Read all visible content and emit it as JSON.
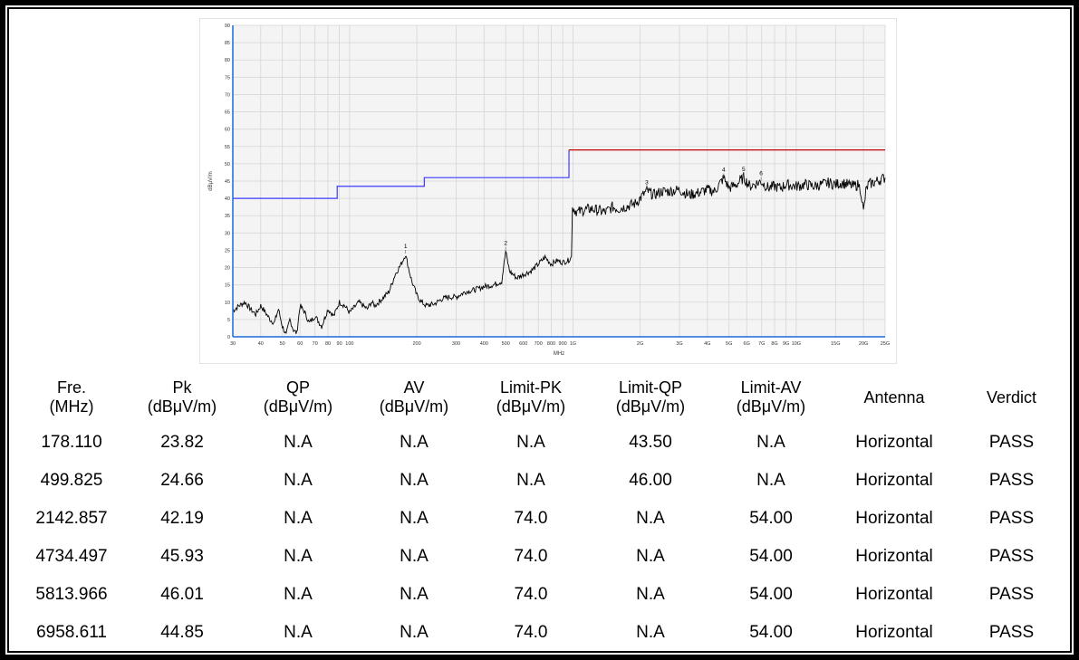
{
  "chart_data": {
    "type": "line",
    "xlabel": "MHz",
    "ylabel": "dBμV/m",
    "x_scale": "log",
    "xlim": [
      30,
      25000
    ],
    "ylim": [
      0,
      90
    ],
    "y_ticks": [
      0,
      5,
      10,
      15,
      20,
      25,
      30,
      35,
      40,
      45,
      50,
      55,
      60,
      65,
      70,
      75,
      80,
      85,
      90
    ],
    "x_ticks": [
      {
        "value": 30,
        "label": "30"
      },
      {
        "value": 40,
        "label": "40"
      },
      {
        "value": 50,
        "label": "50"
      },
      {
        "value": 60,
        "label": "60"
      },
      {
        "value": 70,
        "label": "70"
      },
      {
        "value": 80,
        "label": "80"
      },
      {
        "value": 90,
        "label": "90"
      },
      {
        "value": 100,
        "label": "100"
      },
      {
        "value": 200,
        "label": "200"
      },
      {
        "value": 300,
        "label": "300"
      },
      {
        "value": 400,
        "label": "400"
      },
      {
        "value": 500,
        "label": "500"
      },
      {
        "value": 600,
        "label": "600"
      },
      {
        "value": 700,
        "label": "700"
      },
      {
        "value": 800,
        "label": "800"
      },
      {
        "value": 900,
        "label": "900"
      },
      {
        "value": 1000,
        "label": "1G"
      },
      {
        "value": 2000,
        "label": "2G"
      },
      {
        "value": 3000,
        "label": "3G"
      },
      {
        "value": 4000,
        "label": "4G"
      },
      {
        "value": 5000,
        "label": "5G"
      },
      {
        "value": 6000,
        "label": "6G"
      },
      {
        "value": 7000,
        "label": "7G"
      },
      {
        "value": 8000,
        "label": "8G"
      },
      {
        "value": 9000,
        "label": "9G"
      },
      {
        "value": 10000,
        "label": "10G"
      },
      {
        "value": 15000,
        "label": "15G"
      },
      {
        "value": 20000,
        "label": "20G"
      },
      {
        "value": 25000,
        "label": "25G"
      }
    ],
    "grid": true,
    "series": [
      {
        "color": "#000000",
        "x": [
          30,
          32,
          34,
          36,
          38,
          40,
          42,
          44,
          46,
          48,
          50,
          52,
          54,
          56,
          58,
          60,
          63,
          66,
          70,
          75,
          80,
          85,
          90,
          95,
          100,
          105,
          110,
          115,
          120,
          125,
          130,
          140,
          150,
          160,
          170,
          178,
          185,
          190,
          195,
          200,
          210,
          220,
          240,
          260,
          280,
          300,
          330,
          360,
          400,
          440,
          480,
          499.8,
          520,
          560,
          600,
          650,
          700,
          750,
          800,
          850,
          900,
          950,
          985,
          995,
          1005,
          1050,
          1100,
          1200,
          1300,
          1400,
          1500,
          1600,
          1700,
          1800,
          1900,
          2000,
          2142,
          2300,
          2500,
          2700,
          3000,
          3300,
          3600,
          4000,
          4300,
          4734,
          5000,
          5400,
          5813,
          6200,
          6958,
          7500,
          8000,
          8500,
          9000,
          10000,
          11000,
          12000,
          13000,
          14000,
          15000,
          16000,
          17000,
          18000,
          19000,
          19500,
          20000,
          20500,
          21000,
          22000,
          23000,
          24000,
          25000
        ],
        "y": [
          7.5,
          9,
          10,
          8,
          6.5,
          9,
          7,
          5,
          4,
          8,
          3,
          0.5,
          5,
          2,
          1,
          9,
          7,
          4,
          6,
          3,
          8,
          6,
          10,
          9,
          7,
          8.5,
          10,
          9,
          8,
          10,
          9,
          11,
          13,
          18,
          21,
          23.8,
          19,
          16,
          14,
          12,
          10,
          9,
          9.5,
          11,
          11.5,
          11.5,
          13,
          13.5,
          14.5,
          15,
          16,
          24.7,
          19,
          17,
          18,
          19,
          21,
          23,
          21,
          22,
          21.5,
          22,
          23,
          38,
          37,
          36,
          36.5,
          37,
          36.5,
          36,
          37.5,
          37,
          37.5,
          38,
          38.5,
          40,
          42.2,
          41,
          42,
          42,
          42.5,
          41,
          41.5,
          42.5,
          42,
          45.9,
          43,
          44,
          46,
          43.5,
          44.9,
          43,
          43.5,
          43,
          44,
          43.5,
          44,
          43.5,
          44,
          44.5,
          44,
          44.5,
          44,
          43.5,
          44,
          42,
          36,
          42,
          44,
          44.5,
          45,
          45.5,
          46
        ]
      }
    ],
    "limit_lines": [
      {
        "color": "#3a3aff",
        "x": [
          30,
          88,
          88,
          216,
          216,
          960,
          960
        ],
        "y": [
          40,
          40,
          43.5,
          43.5,
          46,
          46,
          54
        ]
      },
      {
        "color": "#c00000",
        "x": [
          960,
          25000
        ],
        "y": [
          54,
          54
        ]
      }
    ],
    "markers": [
      {
        "label": "1",
        "x": 178.11,
        "y": 23.82
      },
      {
        "label": "2",
        "x": 499.825,
        "y": 24.66
      },
      {
        "label": "3",
        "x": 2142.857,
        "y": 42.19
      },
      {
        "label": "4",
        "x": 4734.497,
        "y": 45.93
      },
      {
        "label": "5",
        "x": 5813.966,
        "y": 46.01
      },
      {
        "label": "6",
        "x": 6958.611,
        "y": 44.85
      }
    ]
  },
  "table": {
    "headers": [
      [
        "Fre.",
        "(MHz)"
      ],
      [
        "Pk",
        "(dBμV/m)"
      ],
      [
        "QP",
        "(dBμV/m)"
      ],
      [
        "AV",
        "(dBμV/m)"
      ],
      [
        "Limit-PK",
        "(dBμV/m)"
      ],
      [
        "Limit-QP",
        "(dBμV/m)"
      ],
      [
        "Limit-AV",
        "(dBμV/m)"
      ],
      [
        "Antenna",
        ""
      ],
      [
        "Verdict",
        ""
      ]
    ],
    "rows": [
      [
        "178.110",
        "23.82",
        "N.A",
        "N.A",
        "N.A",
        "43.50",
        "N.A",
        "Horizontal",
        "PASS"
      ],
      [
        "499.825",
        "24.66",
        "N.A",
        "N.A",
        "N.A",
        "46.00",
        "N.A",
        "Horizontal",
        "PASS"
      ],
      [
        "2142.857",
        "42.19",
        "N.A",
        "N.A",
        "74.0",
        "N.A",
        "54.00",
        "Horizontal",
        "PASS"
      ],
      [
        "4734.497",
        "45.93",
        "N.A",
        "N.A",
        "74.0",
        "N.A",
        "54.00",
        "Horizontal",
        "PASS"
      ],
      [
        "5813.966",
        "46.01",
        "N.A",
        "N.A",
        "74.0",
        "N.A",
        "54.00",
        "Horizontal",
        "PASS"
      ],
      [
        "6958.611",
        "44.85",
        "N.A",
        "N.A",
        "74.0",
        "N.A",
        "54.00",
        "Horizontal",
        "PASS"
      ]
    ]
  }
}
